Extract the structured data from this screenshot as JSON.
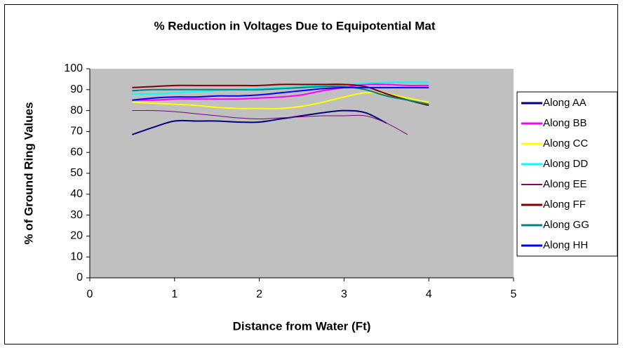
{
  "chart_data": {
    "type": "line",
    "title": "% Reduction in Voltages Due to Equipotential Mat",
    "x_label": "Distance from Water (Ft)",
    "y_label": "% of Ground Ring Values",
    "x": [
      0.5,
      0.75,
      1.0,
      1.25,
      1.5,
      1.75,
      2.0,
      2.25,
      2.5,
      2.75,
      3.0,
      3.25,
      3.5,
      3.75,
      4.0
    ],
    "series": [
      {
        "name": "Along AA",
        "color": "#000080",
        "line_width": 2,
        "values": [
          68.5,
          72,
          75,
          75,
          75,
          74.5,
          74.5,
          76,
          77.5,
          79,
          80,
          79,
          74,
          null,
          null
        ]
      },
      {
        "name": "Along BB",
        "color": "#ff00ff",
        "line_width": 2,
        "values": [
          85,
          85,
          85.5,
          85.5,
          85.5,
          85.5,
          86,
          86.5,
          87.5,
          89.5,
          91,
          92.5,
          92.5,
          92,
          92
        ]
      },
      {
        "name": "Along CC",
        "color": "#ffff00",
        "line_width": 2,
        "values": [
          84,
          83.5,
          83,
          82.5,
          81.5,
          81,
          81,
          81,
          82,
          84,
          86.5,
          88.5,
          88,
          86,
          84
        ]
      },
      {
        "name": "Along DD",
        "color": "#00ffff",
        "line_width": 2,
        "values": [
          88,
          88,
          88.5,
          89,
          89.5,
          90,
          90.5,
          91,
          91.5,
          92,
          92.5,
          93,
          93.5,
          93.5,
          93.5
        ]
      },
      {
        "name": "Along EE",
        "color": "#800080",
        "line_width": 1,
        "values": [
          80,
          80,
          79.5,
          78.5,
          77.5,
          76.5,
          76,
          76.5,
          77,
          77.5,
          77.5,
          77.5,
          74,
          68.5,
          null
        ]
      },
      {
        "name": "Along FF",
        "color": "#800000",
        "line_width": 2,
        "values": [
          91,
          91.5,
          92,
          92,
          92,
          92,
          92,
          92.5,
          92.5,
          92.5,
          92.5,
          91.5,
          88,
          85,
          82.5
        ]
      },
      {
        "name": "Along GG",
        "color": "#008080",
        "line_width": 2,
        "values": [
          89.5,
          90,
          90,
          90,
          90,
          90,
          90,
          90.5,
          91,
          91.5,
          91.5,
          90,
          87,
          85,
          83
        ]
      },
      {
        "name": "Along HH",
        "color": "#0000ff",
        "line_width": 2,
        "values": [
          85,
          86,
          86.5,
          86.5,
          87,
          87,
          87.5,
          88.5,
          89.5,
          90.5,
          91,
          91,
          91,
          91,
          91
        ]
      }
    ],
    "xlim": [
      0,
      5
    ],
    "xticks": [
      0,
      1,
      2,
      3,
      4,
      5
    ],
    "ylim": [
      0,
      100
    ],
    "yticks": [
      0,
      10,
      20,
      30,
      40,
      50,
      60,
      70,
      80,
      90,
      100
    ],
    "grid": false,
    "plot_background": "#c0c0c0",
    "legend": "right"
  }
}
